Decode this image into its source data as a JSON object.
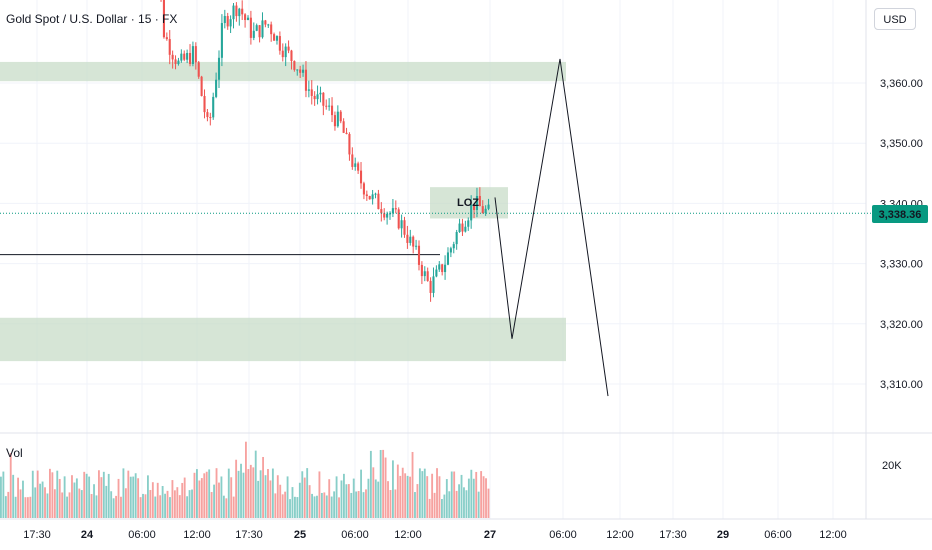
{
  "header": {
    "symbol_title": "Gold Spot / U.S. Dollar · 15 · FX",
    "currency": "USD",
    "volume_label": "Vol"
  },
  "colors": {
    "up": "#26a69a",
    "down": "#ef5350",
    "zone_fill": "#c8dcc8",
    "last_price_bg": "#089981",
    "grid": "#f0f3fa",
    "projection": "#131722"
  },
  "chart_data": {
    "type": "candlestick",
    "y_axis_ticks": [
      "3,360.00",
      "3,350.00",
      "3,340.00",
      "3,330.00",
      "3,320.00",
      "3,310.00"
    ],
    "volume_axis_tick": "20K",
    "x_axis_ticks": [
      "17:30",
      "24",
      "06:00",
      "12:00",
      "17:30",
      "25",
      "06:00",
      "12:00",
      "27",
      "06:00",
      "12:00",
      "17:30",
      "29",
      "06:00",
      "12:00"
    ],
    "bold_x_ticks": [
      "24",
      "25",
      "27",
      "29"
    ],
    "last_price": "3,338.36",
    "price_path": [
      3395,
      3368,
      3363,
      3365,
      3352,
      3370,
      3373,
      3368,
      3370,
      3366,
      3363,
      3358,
      3356,
      3353,
      3345,
      3341,
      3339,
      3337,
      3332,
      3326,
      3330,
      3336,
      3340,
      3338.36
    ],
    "zones": [
      {
        "price_top": 3363.5,
        "price_bottom": 3360.3
      },
      {
        "price_top": 3342.7,
        "price_bottom": 3337.5,
        "label": "LOZ"
      },
      {
        "price_top": 3321.0,
        "price_bottom": 3313.8
      }
    ],
    "support_line": 3331.5,
    "projection": [
      {
        "time": "27 ~03:00",
        "price": 3341
      },
      {
        "time": "27 ~04:00",
        "price": 3317.5
      },
      {
        "time": "27 ~06:00",
        "price": 3364
      },
      {
        "time": "27 ~09:00",
        "price": 3308
      }
    ],
    "ylim": [
      3303,
      3372
    ],
    "grid": true
  }
}
